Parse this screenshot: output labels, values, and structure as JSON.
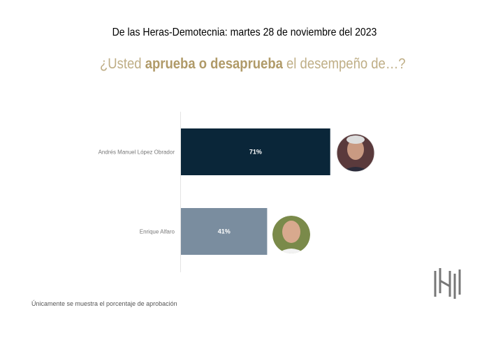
{
  "header": {
    "title": "De las Heras-Demotecnia: martes 28 de noviembre del 2023",
    "question_pre": "¿Usted ",
    "question_bold": "aprueba o desaprueba",
    "question_post": " el desempeño de…?"
  },
  "footnote": "Únicamente se muestra el porcentaje de aprobación",
  "chart_data": {
    "type": "bar",
    "orientation": "horizontal",
    "title": "¿Usted aprueba o desaprueba el desempeño de…?",
    "categories": [
      "Andrés Manuel López Obrador",
      "Enrique Alfaro"
    ],
    "values": [
      71,
      41
    ],
    "labels": [
      "71%",
      "41%"
    ],
    "colors": [
      "#0a2639",
      "#7a8d9f"
    ],
    "xlim": [
      0,
      100
    ],
    "grid": false
  }
}
